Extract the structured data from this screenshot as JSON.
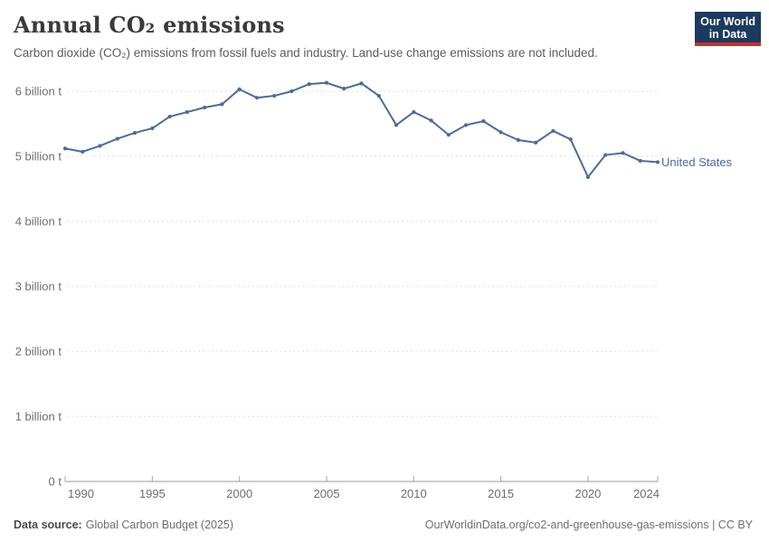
{
  "header": {
    "title": "Annual CO₂ emissions",
    "subtitle": "Carbon dioxide (CO₂) emissions from fossil fuels and industry. Land-use change emissions are not included."
  },
  "logo": {
    "line1": "Our World",
    "line2": "in Data",
    "bg_color": "#1c3a5e",
    "accent_color": "#cf2d27"
  },
  "chart_data": {
    "type": "line",
    "title": "Annual CO₂ emissions",
    "unit": "billion tonnes",
    "x": [
      1990,
      1991,
      1992,
      1993,
      1994,
      1995,
      1996,
      1997,
      1998,
      1999,
      2000,
      2001,
      2002,
      2003,
      2004,
      2005,
      2006,
      2007,
      2008,
      2009,
      2010,
      2011,
      2012,
      2013,
      2014,
      2015,
      2016,
      2017,
      2018,
      2019,
      2020,
      2021,
      2022,
      2023,
      2024
    ],
    "series": [
      {
        "name": "United States",
        "color": "#4C6A9C",
        "values": [
          5.12,
          5.07,
          5.16,
          5.27,
          5.36,
          5.43,
          5.61,
          5.68,
          5.75,
          5.8,
          6.03,
          5.9,
          5.93,
          6.0,
          6.11,
          6.13,
          6.04,
          6.12,
          5.93,
          5.48,
          5.68,
          5.55,
          5.33,
          5.48,
          5.54,
          5.37,
          5.25,
          5.21,
          5.39,
          5.26,
          4.68,
          5.02,
          5.05,
          4.93,
          4.91
        ]
      }
    ],
    "x_ticks": [
      1990,
      1995,
      2000,
      2005,
      2010,
      2015,
      2020,
      2024
    ],
    "y_ticks": [
      {
        "value": 0,
        "label": "0 t"
      },
      {
        "value": 1,
        "label": "1 billion t"
      },
      {
        "value": 2,
        "label": "2 billion t"
      },
      {
        "value": 3,
        "label": "3 billion t"
      },
      {
        "value": 4,
        "label": "4 billion t"
      },
      {
        "value": 5,
        "label": "5 billion t"
      },
      {
        "value": 6,
        "label": "6 billion t"
      }
    ],
    "ylim": [
      0,
      6.3
    ],
    "grid": "horizontal-dashed",
    "legend_position": "end-of-line"
  },
  "footer": {
    "source_label": "Data source:",
    "source_value": "Global Carbon Budget (2025)",
    "link": "OurWorldinData.org/co2-and-greenhouse-gas-emissions | CC BY"
  }
}
